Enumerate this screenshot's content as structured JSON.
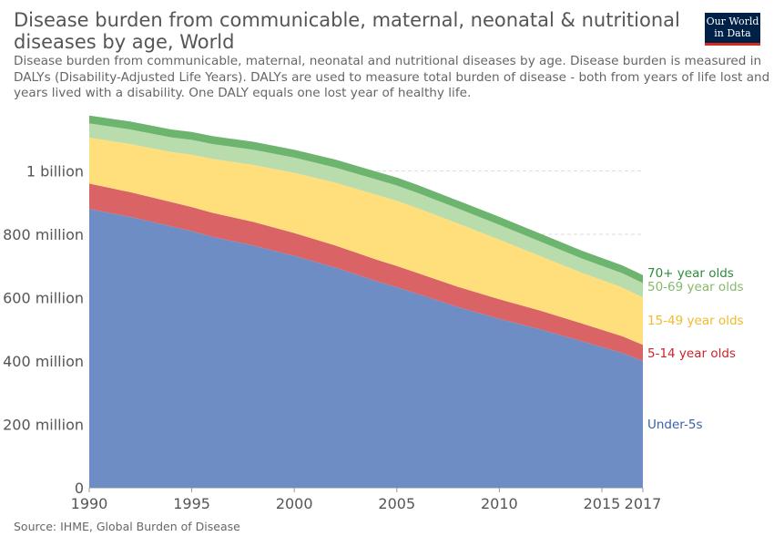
{
  "header": {
    "title_line1": "Disease burden from communicable, maternal, neonatal & nutritional",
    "title_line2": "diseases by age, World",
    "subtitle_line1": "Disease burden from communicable, maternal, neonatal and nutritional diseases by age. Disease burden is measured in",
    "subtitle_line2": "DALYs (Disability-Adjusted Life Years). DALYs are used to measure total burden of disease - both from years of life lost and",
    "subtitle_line3": "years lived with a disability. One DALY equals one lost year of healthy life."
  },
  "logo": {
    "line1": "Our World",
    "line2": "in Data",
    "bg_color": "#002147",
    "accent_color": "#d42b21"
  },
  "source": "Source: IHME, Global Burden of Disease",
  "chart_data": {
    "type": "area",
    "stacked": true,
    "x": [
      1990,
      1992,
      1994,
      1995,
      1996,
      1998,
      2000,
      2002,
      2004,
      2005,
      2006,
      2008,
      2010,
      2012,
      2014,
      2016,
      2017
    ],
    "xticks": [
      "1990",
      "1995",
      "2000",
      "2005",
      "2010",
      "2015",
      "2017"
    ],
    "yticks": [
      "0",
      "200 million",
      "400 million",
      "600 million",
      "800 million",
      "1 billion"
    ],
    "ylim": [
      0,
      1200000000
    ],
    "grid": "horizontal-dashed",
    "series": [
      {
        "name": "Under-5s",
        "color": "#6d8dc4",
        "label_color": "#3a5fa8",
        "values": [
          880000000,
          855000000,
          825000000,
          810000000,
          792000000,
          765000000,
          732000000,
          695000000,
          652000000,
          633000000,
          612000000,
          570000000,
          533000000,
          500000000,
          463000000,
          425000000,
          400000000
        ]
      },
      {
        "name": "5-14 year olds",
        "color": "#da6366",
        "label_color": "#c8262b",
        "values": [
          80000000,
          78000000,
          77000000,
          76000000,
          76000000,
          74000000,
          72000000,
          70000000,
          68000000,
          67000000,
          66000000,
          64000000,
          62000000,
          59000000,
          56000000,
          53000000,
          51000000
        ]
      },
      {
        "name": "15-49 year olds",
        "color": "#ffdf7b",
        "label_color": "#f2b92a",
        "values": [
          145000000,
          152000000,
          158000000,
          165000000,
          170000000,
          180000000,
          190000000,
          198000000,
          205000000,
          206000000,
          205000000,
          200000000,
          188000000,
          172000000,
          160000000,
          154000000,
          150000000
        ]
      },
      {
        "name": "50-69 year olds",
        "color": "#b8dcac",
        "label_color": "#86b96b",
        "values": [
          45000000,
          46000000,
          46000000,
          47000000,
          47000000,
          48000000,
          48000000,
          48000000,
          48000000,
          48000000,
          48000000,
          47000000,
          47000000,
          46000000,
          45000000,
          45000000,
          45000000
        ]
      },
      {
        "name": "70+ year olds",
        "color": "#6db46e",
        "label_color": "#2e8b3e",
        "values": [
          25000000,
          25000000,
          25000000,
          25000000,
          25000000,
          25000000,
          25000000,
          25000000,
          25000000,
          25000000,
          25000000,
          25000000,
          25000000,
          25000000,
          25000000,
          25000000,
          25000000
        ]
      }
    ]
  }
}
